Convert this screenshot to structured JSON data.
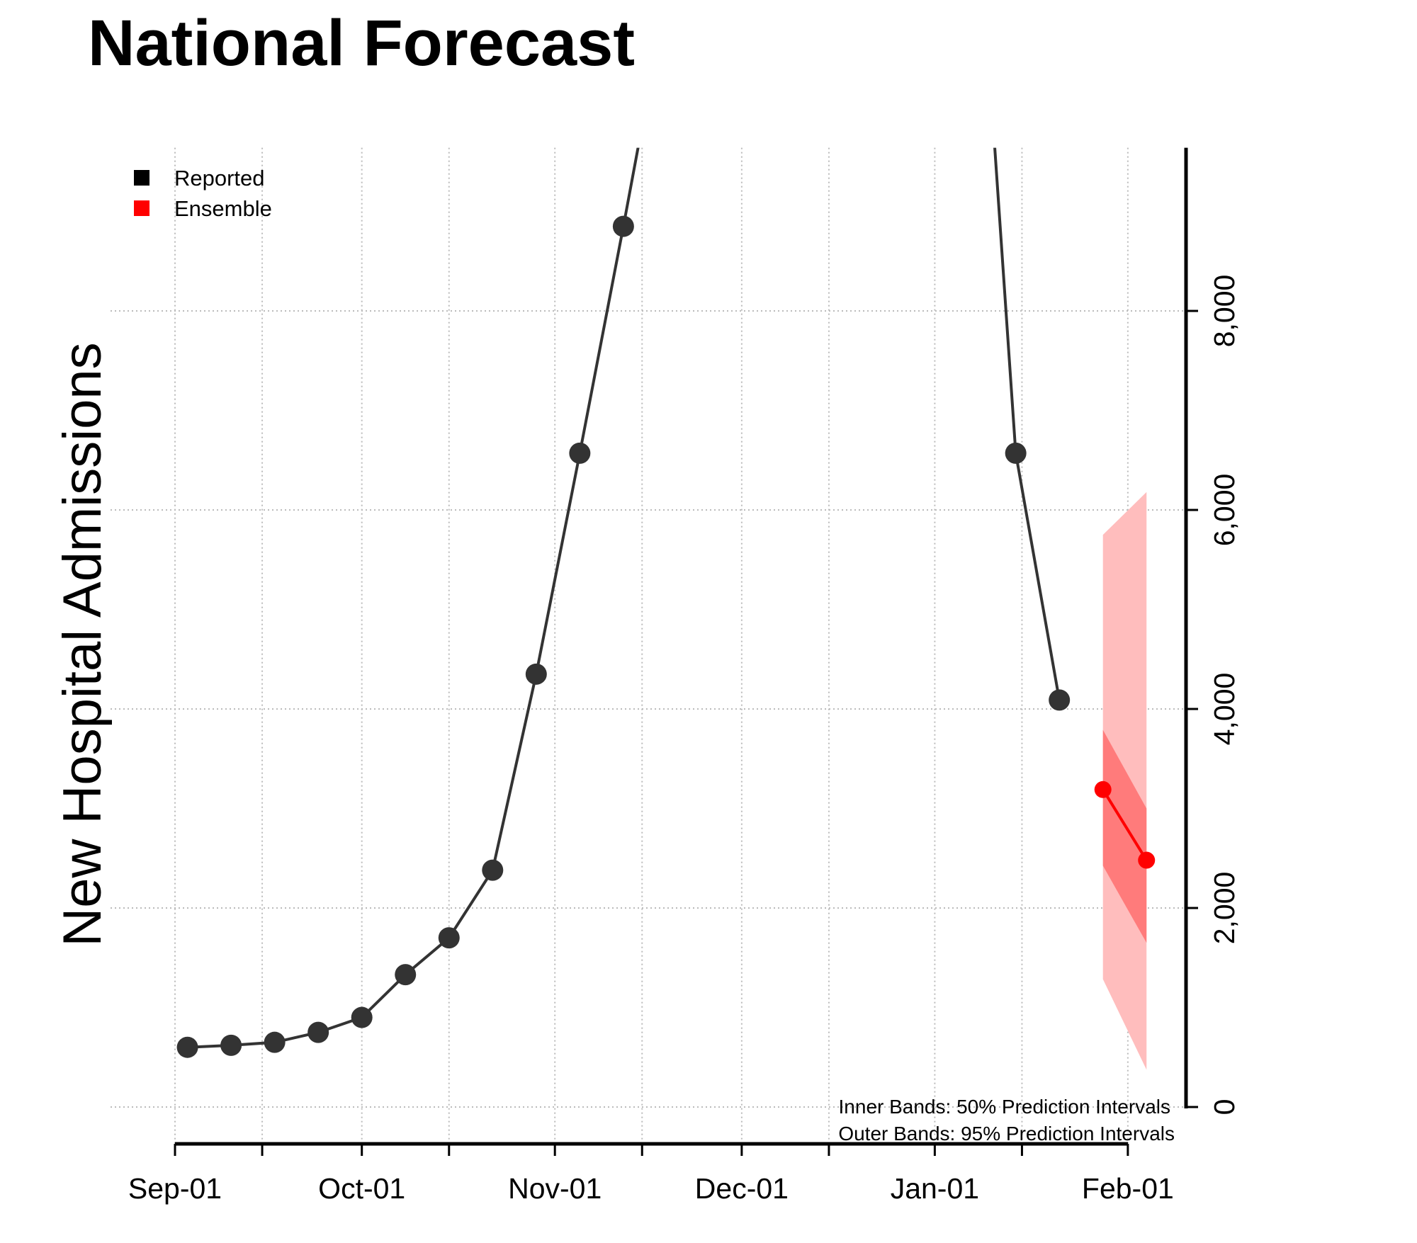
{
  "chart_data": {
    "type": "line",
    "title": "National Forecast",
    "ylabel": "New Hospital Admissions",
    "xlabel": "",
    "ylim": [
      0,
      9640
    ],
    "xlim": [
      "2020-09-01",
      "2021-02-08"
    ],
    "grid": true,
    "legend_position": "top-left",
    "x_tick_labels": [
      "Sep-01",
      "Oct-01",
      "Nov-01",
      "Dec-01",
      "Jan-01",
      "Feb-01"
    ],
    "x_tick_dates": [
      "2020-09-01",
      "2020-10-01",
      "2020-11-01",
      "2020-12-01",
      "2021-01-01",
      "2021-02-01"
    ],
    "x_minor_tick_dates": [
      "2020-09-15",
      "2020-10-15",
      "2020-11-15",
      "2020-12-15",
      "2021-01-15"
    ],
    "y_ticks": [
      0,
      2000,
      4000,
      6000,
      8000
    ],
    "y_tick_labels": [
      "0",
      "2,000",
      "4,000",
      "6,000",
      "8,000"
    ],
    "series": [
      {
        "name": "Reported",
        "color": "#333333",
        "points": [
          {
            "x": "2020-09-03",
            "y": 600
          },
          {
            "x": "2020-09-10",
            "y": 620
          },
          {
            "x": "2020-09-17",
            "y": 650
          },
          {
            "x": "2020-09-24",
            "y": 750
          },
          {
            "x": "2020-10-01",
            "y": 900
          },
          {
            "x": "2020-10-08",
            "y": 1330
          },
          {
            "x": "2020-10-15",
            "y": 1700
          },
          {
            "x": "2020-10-22",
            "y": 2380
          },
          {
            "x": "2020-10-29",
            "y": 4350
          },
          {
            "x": "2020-11-05",
            "y": 6570
          },
          {
            "x": "2020-11-12",
            "y": 8850
          },
          {
            "x": "2020-11-19",
            "y": 11200
          },
          {
            "x": "2021-01-07",
            "y": 12950
          },
          {
            "x": "2021-01-14",
            "y": 6570
          },
          {
            "x": "2021-01-21",
            "y": 4090
          }
        ]
      },
      {
        "name": "Ensemble",
        "color": "#ff0000",
        "points": [
          {
            "x": "2021-01-28",
            "y": 3190
          },
          {
            "x": "2021-02-04",
            "y": 2480
          }
        ],
        "interval_50": [
          {
            "x": "2021-01-28",
            "lower": 2425,
            "upper": 3790
          },
          {
            "x": "2021-02-04",
            "lower": 1650,
            "upper": 3000
          }
        ],
        "interval_95": [
          {
            "x": "2021-01-28",
            "lower": 1285,
            "upper": 5750
          },
          {
            "x": "2021-02-04",
            "lower": 375,
            "upper": 6180
          }
        ]
      }
    ],
    "legend": [
      {
        "label": "Reported",
        "color": "#000000"
      },
      {
        "label": "Ensemble",
        "color": "#ff0000"
      }
    ],
    "annotations": [
      "Inner Bands: 50% Prediction Intervals",
      "Outer Bands: 95% Prediction Intervals"
    ],
    "band_colors": {
      "inner": "#ff7b7b",
      "outer": "#ffbdbd"
    }
  }
}
